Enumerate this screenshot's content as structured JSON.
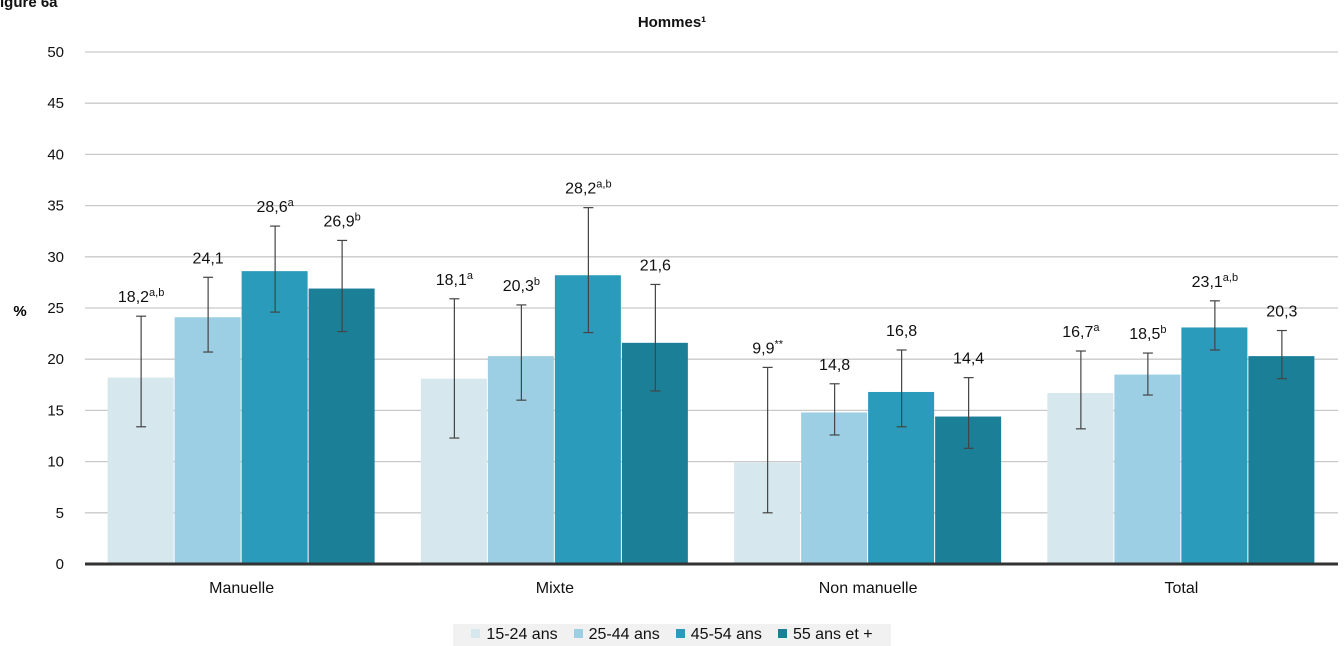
{
  "figure_label": "igure 6a",
  "chart_data": {
    "type": "bar",
    "title": "Hommes¹",
    "ylabel": "%",
    "ylim": [
      0,
      50
    ],
    "yticks": [
      0,
      5,
      10,
      15,
      20,
      25,
      30,
      35,
      40,
      45,
      50
    ],
    "grid": true,
    "legend_position": "bottom",
    "categories": [
      "Manuelle",
      "Mixte",
      "Non manuelle",
      "Total"
    ],
    "series": [
      {
        "name": "15-24 ans",
        "color": "#d6e8ee",
        "values": [
          18.2,
          18.1,
          9.9,
          16.7
        ],
        "error_low": [
          13.4,
          12.3,
          5.0,
          13.2
        ],
        "error_high": [
          24.2,
          25.9,
          19.2,
          20.8
        ],
        "labels": [
          "18,2",
          "18,1",
          "9,9",
          "16,7"
        ],
        "label_sups": [
          "a,b",
          "a",
          "**",
          "a"
        ]
      },
      {
        "name": "25-44 ans",
        "color": "#9dcfe4",
        "values": [
          24.1,
          20.3,
          14.8,
          18.5
        ],
        "error_low": [
          20.7,
          16.0,
          12.6,
          16.5
        ],
        "error_high": [
          28.0,
          25.3,
          17.6,
          20.6
        ],
        "labels": [
          "24,1",
          "20,3",
          "14,8",
          "18,5"
        ],
        "label_sups": [
          "",
          "b",
          "",
          "b"
        ]
      },
      {
        "name": "45-54 ans",
        "color": "#2a9bba",
        "values": [
          28.6,
          28.2,
          16.8,
          23.1
        ],
        "error_low": [
          24.6,
          22.6,
          13.4,
          20.9
        ],
        "error_high": [
          33.0,
          34.8,
          20.9,
          25.7
        ],
        "labels": [
          "28,6",
          "28,2",
          "16,8",
          "23,1"
        ],
        "label_sups": [
          "a",
          "a,b",
          "",
          "a,b"
        ]
      },
      {
        "name": "55 ans et +",
        "color": "#1c7f98",
        "values": [
          26.9,
          21.6,
          14.4,
          20.3
        ],
        "error_low": [
          22.7,
          16.9,
          11.3,
          18.1
        ],
        "error_high": [
          31.6,
          27.3,
          18.2,
          22.8
        ],
        "labels": [
          "26,9",
          "21,6",
          "14,4",
          "20,3"
        ],
        "label_sups": [
          "b",
          "",
          "",
          ""
        ]
      }
    ]
  }
}
